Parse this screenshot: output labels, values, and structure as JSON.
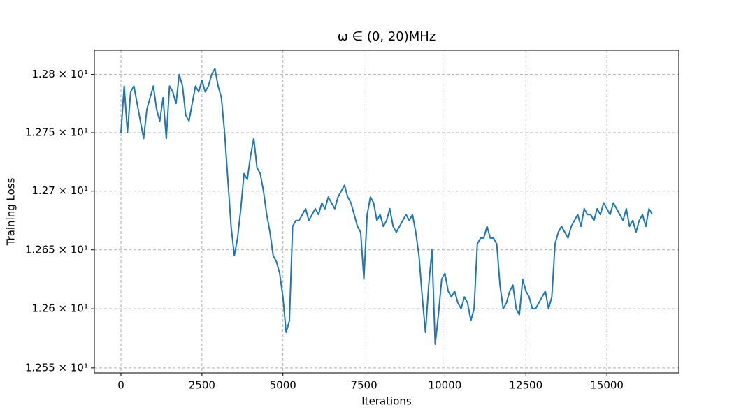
{
  "chart_data": {
    "type": "line",
    "title": "ω ∈ (0, 20)MHz",
    "x_label": "Iterations",
    "y_label": "Training Loss",
    "yscale": "log",
    "grid": true,
    "xlim": [
      -820,
      17220
    ],
    "ylim": [
      12.5458,
      12.8208
    ],
    "xticks": [
      0,
      2500,
      5000,
      7500,
      10000,
      12500,
      15000
    ],
    "yticks": [
      {
        "value": 12.55,
        "label": "1.255 × 10¹"
      },
      {
        "value": 12.6,
        "label": "1.26 × 10¹"
      },
      {
        "value": 12.65,
        "label": "1.265 × 10¹"
      },
      {
        "value": 12.7,
        "label": "1.27 × 10¹"
      },
      {
        "value": 12.75,
        "label": "1.275 × 10¹"
      },
      {
        "value": 12.8,
        "label": "1.28 × 10¹"
      }
    ],
    "x": [
      0,
      100,
      200,
      300,
      400,
      500,
      600,
      700,
      800,
      900,
      1000,
      1100,
      1200,
      1300,
      1400,
      1500,
      1600,
      1700,
      1800,
      1900,
      2000,
      2100,
      2200,
      2300,
      2400,
      2500,
      2600,
      2700,
      2800,
      2900,
      3000,
      3100,
      3200,
      3300,
      3400,
      3500,
      3600,
      3700,
      3800,
      3900,
      4000,
      4100,
      4200,
      4300,
      4400,
      4500,
      4600,
      4700,
      4800,
      4900,
      5000,
      5100,
      5200,
      5300,
      5400,
      5500,
      5600,
      5700,
      5800,
      5900,
      6000,
      6100,
      6200,
      6300,
      6400,
      6500,
      6600,
      6700,
      6800,
      6900,
      7000,
      7100,
      7200,
      7300,
      7400,
      7500,
      7600,
      7700,
      7800,
      7900,
      8000,
      8100,
      8200,
      8300,
      8400,
      8500,
      8600,
      8700,
      8800,
      8900,
      9000,
      9100,
      9200,
      9300,
      9400,
      9500,
      9600,
      9700,
      9800,
      9900,
      10000,
      10100,
      10200,
      10300,
      10400,
      10500,
      10600,
      10700,
      10800,
      10900,
      11000,
      11100,
      11200,
      11300,
      11400,
      11500,
      11600,
      11700,
      11800,
      11900,
      12000,
      12100,
      12200,
      12300,
      12400,
      12500,
      12600,
      12700,
      12800,
      12900,
      13000,
      13100,
      13200,
      13300,
      13400,
      13500,
      13600,
      13700,
      13800,
      13900,
      14000,
      14100,
      14200,
      14300,
      14400,
      14500,
      14600,
      14700,
      14800,
      14900,
      15000,
      15100,
      15200,
      15300,
      15400,
      15500,
      15600,
      15700,
      15800,
      15900,
      16000,
      16100,
      16200,
      16300,
      16400
    ],
    "series": [
      {
        "name": "Training Loss",
        "color": "#1f77b4",
        "values": [
          12.75,
          12.79,
          12.75,
          12.785,
          12.79,
          12.775,
          12.76,
          12.745,
          12.77,
          12.78,
          12.79,
          12.77,
          12.76,
          12.78,
          12.745,
          12.79,
          12.785,
          12.775,
          12.8,
          12.79,
          12.765,
          12.76,
          12.775,
          12.79,
          12.785,
          12.795,
          12.785,
          12.79,
          12.8,
          12.805,
          12.79,
          12.78,
          12.75,
          12.71,
          12.67,
          12.645,
          12.66,
          12.685,
          12.715,
          12.71,
          12.73,
          12.745,
          12.72,
          12.715,
          12.7,
          12.68,
          12.665,
          12.645,
          12.64,
          12.63,
          12.61,
          12.58,
          12.59,
          12.67,
          12.675,
          12.675,
          12.68,
          12.685,
          12.675,
          12.68,
          12.685,
          12.68,
          12.69,
          12.685,
          12.695,
          12.69,
          12.685,
          12.695,
          12.7,
          12.705,
          12.695,
          12.69,
          12.68,
          12.67,
          12.665,
          12.625,
          12.68,
          12.695,
          12.69,
          12.675,
          12.68,
          12.67,
          12.675,
          12.685,
          12.67,
          12.665,
          12.67,
          12.675,
          12.68,
          12.675,
          12.68,
          12.665,
          12.645,
          12.61,
          12.58,
          12.62,
          12.65,
          12.57,
          12.595,
          12.625,
          12.63,
          12.615,
          12.61,
          12.615,
          12.605,
          12.6,
          12.61,
          12.605,
          12.59,
          12.6,
          12.655,
          12.66,
          12.66,
          12.67,
          12.66,
          12.66,
          12.655,
          12.62,
          12.6,
          12.605,
          12.615,
          12.62,
          12.6,
          12.595,
          12.625,
          12.615,
          12.61,
          12.6,
          12.6,
          12.605,
          12.61,
          12.615,
          12.6,
          12.61,
          12.655,
          12.665,
          12.67,
          12.665,
          12.66,
          12.67,
          12.675,
          12.68,
          12.67,
          12.685,
          12.68,
          12.68,
          12.675,
          12.685,
          12.68,
          12.69,
          12.685,
          12.68,
          12.69,
          12.685,
          12.68,
          12.675,
          12.685,
          12.67,
          12.675,
          12.665,
          12.675,
          12.68,
          12.67,
          12.685,
          12.68
        ]
      }
    ]
  }
}
